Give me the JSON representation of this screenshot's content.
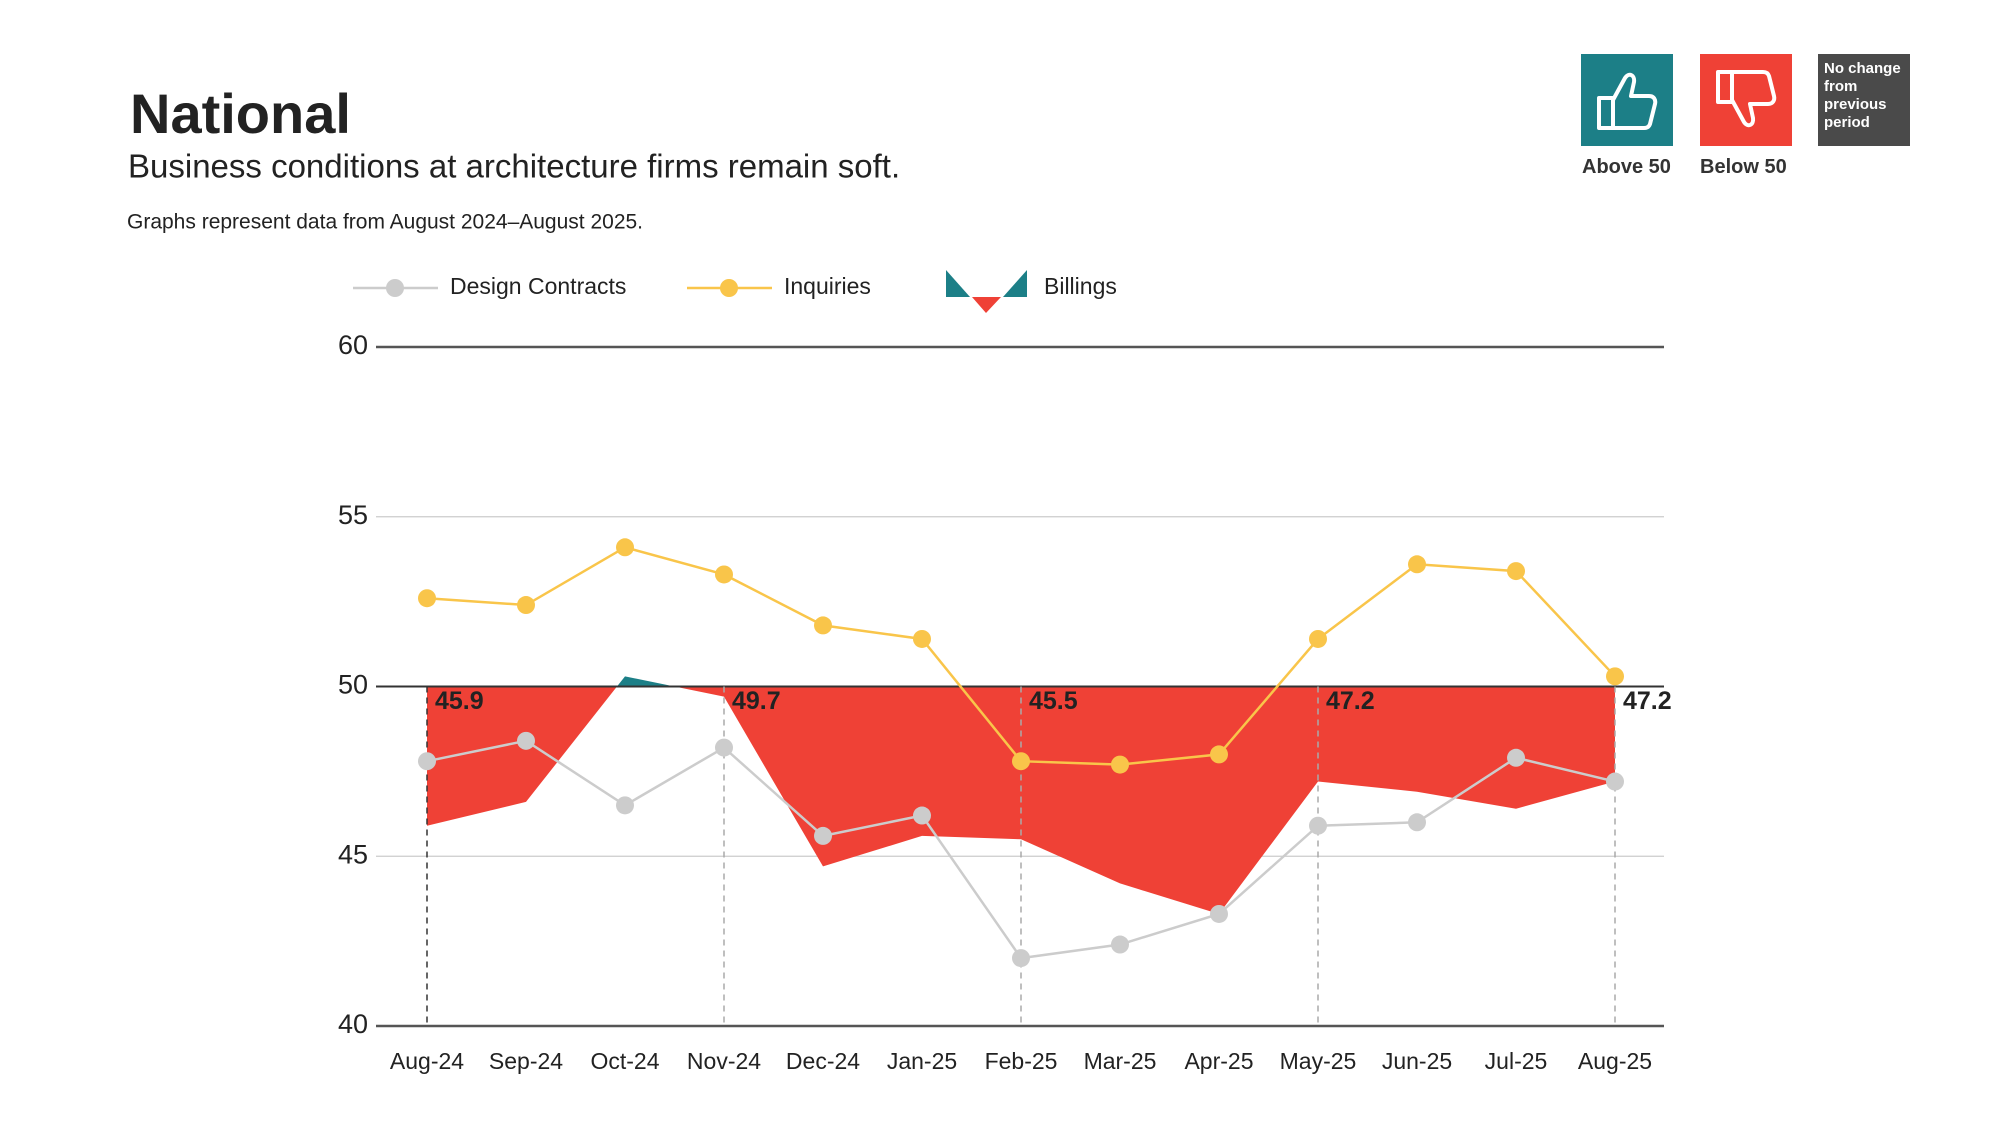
{
  "chart_data": {
    "type": "area_line",
    "title": "National",
    "subtitle": "Business conditions at architecture firms remain soft.",
    "note": "Graphs represent data from August 2024–August 2025.",
    "categories": [
      "Aug-24",
      "Sep-24",
      "Oct-24",
      "Nov-24",
      "Dec-24",
      "Jan-25",
      "Feb-25",
      "Mar-25",
      "Apr-25",
      "May-25",
      "Jun-25",
      "Jul-25",
      "Aug-25"
    ],
    "series": [
      {
        "name": "Design Contracts",
        "color": "#cccccc",
        "values": [
          47.8,
          48.4,
          46.5,
          48.2,
          45.6,
          46.2,
          42.0,
          42.4,
          43.3,
          45.9,
          46.0,
          47.9,
          47.2
        ]
      },
      {
        "name": "Inquiries",
        "color": "#f9c54a",
        "values": [
          52.6,
          52.4,
          54.1,
          53.3,
          51.8,
          51.4,
          47.8,
          47.7,
          48.0,
          51.4,
          53.6,
          53.4,
          50.3
        ]
      },
      {
        "name": "Billings",
        "color": {
          "above": "#1c7f87",
          "below": "#ef4136"
        },
        "values": [
          45.9,
          46.6,
          50.3,
          49.7,
          44.7,
          45.6,
          45.5,
          44.2,
          43.3,
          47.2,
          46.9,
          46.4,
          47.2
        ],
        "value_labels": [
          "45.9",
          null,
          null,
          "49.7",
          null,
          null,
          "45.5",
          null,
          null,
          "47.2",
          null,
          null,
          "47.2"
        ]
      }
    ],
    "baseline": 50,
    "ylim": [
      40,
      60
    ],
    "yticks": [
      40,
      45,
      50,
      55,
      60
    ],
    "grid": true
  },
  "badges": {
    "above": {
      "label": "Above 50",
      "color": "#1c7f87"
    },
    "below": {
      "label": "Below 50",
      "color": "#ef4136"
    },
    "no_change": "No change from previous period"
  }
}
